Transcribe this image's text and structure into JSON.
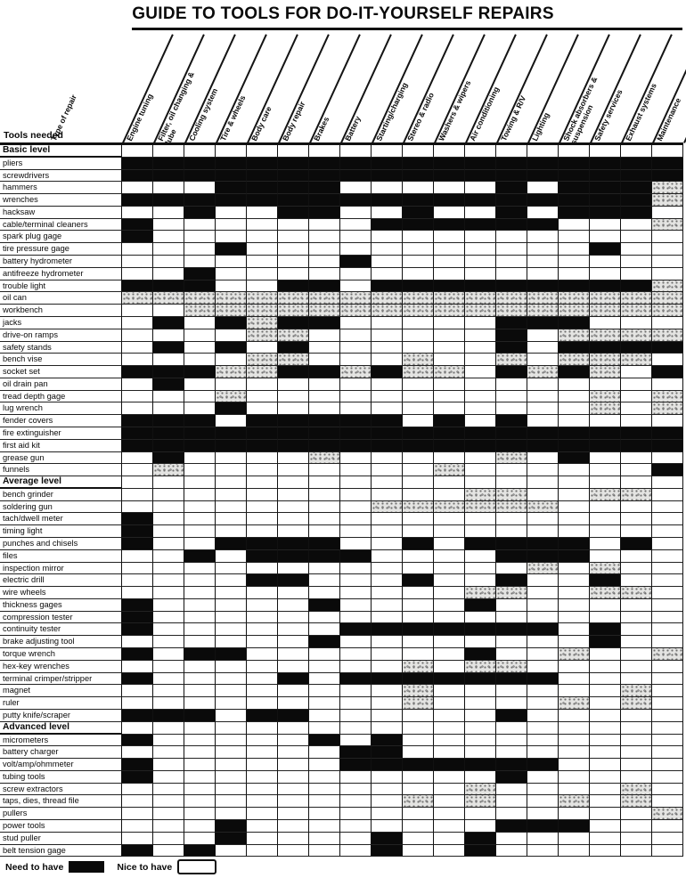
{
  "title": "GUIDE TO TOOLS FOR DO-IT-YOURSELF REPAIRS",
  "corner_label": "Type of repair",
  "tools_needed_label": "Tools needed",
  "legend": {
    "need_label": "Need to have",
    "nice_label": "Nice to have"
  },
  "colors": {
    "ink": "#0a0a0a",
    "paper": "#ffffff",
    "shade": "#9a9a9a"
  },
  "columns": [
    "Engine tuning",
    "Filter, oil changing & lube",
    "Cooling system",
    "Tire & wheels",
    "Body care",
    "Body repair",
    "Brakes",
    "Battery",
    "Starting/charging",
    "Stereo & radio",
    "Washers & wipers",
    "Air conditioning",
    "Towing & R/V",
    "Lighting",
    "Shock absorbers & suspension",
    "Safety services",
    "Exhaust systems",
    "Maintenance"
  ],
  "sections": [
    {
      "label": "Basic level",
      "tools": [
        {
          "name": "pliers",
          "black": [
            1,
            2,
            3,
            4,
            5,
            6,
            7,
            8,
            9,
            10,
            11,
            12,
            13,
            14,
            15,
            16,
            17,
            18
          ],
          "gray": []
        },
        {
          "name": "screwdrivers",
          "black": [
            1,
            2,
            3,
            4,
            5,
            6,
            7,
            8,
            9,
            10,
            11,
            12,
            13,
            14,
            15,
            16,
            17,
            18
          ],
          "gray": []
        },
        {
          "name": "hammers",
          "black": [
            4,
            5,
            6,
            7,
            13,
            15,
            16,
            17
          ],
          "gray": [
            18
          ]
        },
        {
          "name": "wrenches",
          "black": [
            1,
            2,
            3,
            4,
            5,
            6,
            7,
            8,
            9,
            10,
            11,
            12,
            13,
            14,
            15,
            16,
            17
          ],
          "gray": [
            18
          ]
        },
        {
          "name": "hacksaw",
          "black": [
            3,
            6,
            7,
            10,
            13,
            15,
            16,
            17
          ],
          "gray": []
        },
        {
          "name": "cable/terminal cleaners",
          "black": [
            1,
            9,
            10,
            11,
            12,
            13,
            14
          ],
          "gray": [
            18
          ]
        },
        {
          "name": "spark plug gage",
          "black": [
            1
          ],
          "gray": []
        },
        {
          "name": "tire pressure gage",
          "black": [
            4,
            16
          ],
          "gray": []
        },
        {
          "name": "battery hydrometer",
          "black": [
            8
          ],
          "gray": []
        },
        {
          "name": "antifreeze hydrometer",
          "black": [
            3
          ],
          "gray": []
        },
        {
          "name": "trouble light",
          "black": [
            1,
            2,
            3,
            6,
            7,
            9,
            10,
            11,
            12,
            13,
            14,
            15,
            16,
            17
          ],
          "gray": [
            18
          ]
        },
        {
          "name": "oil can",
          "black": [],
          "gray": [
            1,
            2,
            3,
            4,
            5,
            6,
            7,
            8,
            9,
            10,
            11,
            12,
            13,
            14,
            15,
            16,
            17,
            18
          ]
        },
        {
          "name": "workbench",
          "black": [],
          "gray": [
            3,
            4,
            5,
            6,
            7,
            8,
            9,
            10,
            11,
            12,
            13,
            14,
            15,
            16,
            17,
            18
          ]
        },
        {
          "name": "jacks",
          "black": [
            2,
            4,
            6,
            7,
            13,
            14,
            15
          ],
          "gray": [
            5
          ]
        },
        {
          "name": "drive-on ramps",
          "black": [
            13
          ],
          "gray": [
            5,
            6,
            15,
            16,
            17,
            18
          ]
        },
        {
          "name": "safety stands",
          "black": [
            2,
            4,
            6,
            13,
            15,
            16,
            17,
            18
          ],
          "gray": []
        },
        {
          "name": "bench vise",
          "black": [],
          "gray": [
            5,
            6,
            10,
            13,
            15,
            16,
            17
          ]
        },
        {
          "name": "socket set",
          "black": [
            1,
            2,
            3,
            6,
            7,
            9,
            13,
            15,
            18
          ],
          "gray": [
            4,
            5,
            8,
            10,
            11,
            14,
            16
          ]
        },
        {
          "name": "oil drain pan",
          "black": [
            2
          ],
          "gray": []
        },
        {
          "name": "tread depth gage",
          "black": [],
          "gray": [
            4,
            16,
            18
          ]
        },
        {
          "name": "lug wrench",
          "black": [
            4
          ],
          "gray": [
            16,
            18
          ]
        },
        {
          "name": "fender covers",
          "black": [
            1,
            2,
            3,
            5,
            6,
            7,
            8,
            9,
            11,
            13
          ],
          "gray": []
        },
        {
          "name": "fire extinguisher",
          "black": [
            1,
            2,
            3,
            4,
            5,
            6,
            7,
            8,
            9,
            10,
            11,
            12,
            13,
            14,
            15,
            16,
            17,
            18
          ],
          "gray": []
        },
        {
          "name": "first aid kit",
          "black": [
            1,
            2,
            3,
            4,
            5,
            6,
            7,
            8,
            9,
            10,
            11,
            12,
            13,
            14,
            15,
            16,
            17,
            18
          ],
          "gray": []
        },
        {
          "name": "grease gun",
          "black": [
            2,
            15
          ],
          "gray": [
            7,
            13
          ]
        },
        {
          "name": "funnels",
          "black": [
            18
          ],
          "gray": [
            2,
            11
          ]
        }
      ]
    },
    {
      "label": "Average level",
      "tools": [
        {
          "name": "bench grinder",
          "black": [],
          "gray": [
            12,
            13,
            16,
            17
          ]
        },
        {
          "name": "soldering gun",
          "black": [],
          "gray": [
            9,
            10,
            11,
            12,
            13,
            14
          ]
        },
        {
          "name": "tach/dwell meter",
          "black": [
            1
          ],
          "gray": []
        },
        {
          "name": "timing light",
          "black": [
            1
          ],
          "gray": []
        },
        {
          "name": "punches and chisels",
          "black": [
            1,
            4,
            5,
            6,
            7,
            10,
            12,
            13,
            14,
            15,
            17
          ],
          "gray": []
        },
        {
          "name": "files",
          "black": [
            3,
            5,
            6,
            7,
            8,
            13,
            14,
            15
          ],
          "gray": []
        },
        {
          "name": "inspection mirror",
          "black": [],
          "gray": [
            14,
            16
          ]
        },
        {
          "name": "electric drill",
          "black": [
            5,
            6,
            10,
            13,
            16
          ],
          "gray": []
        },
        {
          "name": "wire wheels",
          "black": [],
          "gray": [
            12,
            13,
            16,
            17
          ]
        },
        {
          "name": "thickness gages",
          "black": [
            1,
            7,
            12
          ],
          "gray": []
        },
        {
          "name": "compression tester",
          "black": [
            1
          ],
          "gray": []
        },
        {
          "name": "continuity tester",
          "black": [
            1,
            8,
            9,
            10,
            11,
            12,
            13,
            14,
            16
          ],
          "gray": []
        },
        {
          "name": "brake adjusting tool",
          "black": [
            7,
            16
          ],
          "gray": []
        },
        {
          "name": "torque wrench",
          "black": [
            1,
            3,
            4,
            12
          ],
          "gray": [
            15,
            18
          ]
        },
        {
          "name": "hex-key wrenches",
          "black": [],
          "gray": [
            10,
            12,
            13
          ]
        },
        {
          "name": "terminal crimper/stripper",
          "black": [
            1,
            6,
            8,
            9,
            10,
            11,
            12,
            13,
            14
          ],
          "gray": []
        },
        {
          "name": "magnet",
          "black": [],
          "gray": [
            10,
            17
          ]
        },
        {
          "name": "ruler",
          "black": [],
          "gray": [
            10,
            15,
            17
          ]
        },
        {
          "name": "putty knife/scraper",
          "black": [
            1,
            2,
            3,
            5,
            6,
            13
          ],
          "gray": []
        }
      ]
    },
    {
      "label": "Advanced level",
      "tools": [
        {
          "name": "micrometers",
          "black": [
            1,
            7,
            9
          ],
          "gray": []
        },
        {
          "name": "battery charger",
          "black": [
            8,
            9
          ],
          "gray": []
        },
        {
          "name": "volt/amp/ohmmeter",
          "black": [
            1,
            8,
            9,
            10,
            11,
            12,
            13,
            14
          ],
          "gray": []
        },
        {
          "name": "tubing tools",
          "black": [
            1,
            13
          ],
          "gray": []
        },
        {
          "name": "screw extractors",
          "black": [],
          "gray": [
            12,
            17
          ]
        },
        {
          "name": "taps, dies, thread file",
          "black": [],
          "gray": [
            10,
            12,
            15,
            17
          ]
        },
        {
          "name": "pullers",
          "black": [],
          "gray": [
            18
          ]
        },
        {
          "name": "power tools",
          "black": [
            4,
            13,
            14,
            15
          ],
          "gray": []
        },
        {
          "name": "stud puller",
          "black": [
            4,
            9,
            12
          ],
          "gray": []
        },
        {
          "name": "belt tension gage",
          "black": [
            1,
            3,
            9,
            12
          ],
          "gray": []
        }
      ]
    }
  ]
}
